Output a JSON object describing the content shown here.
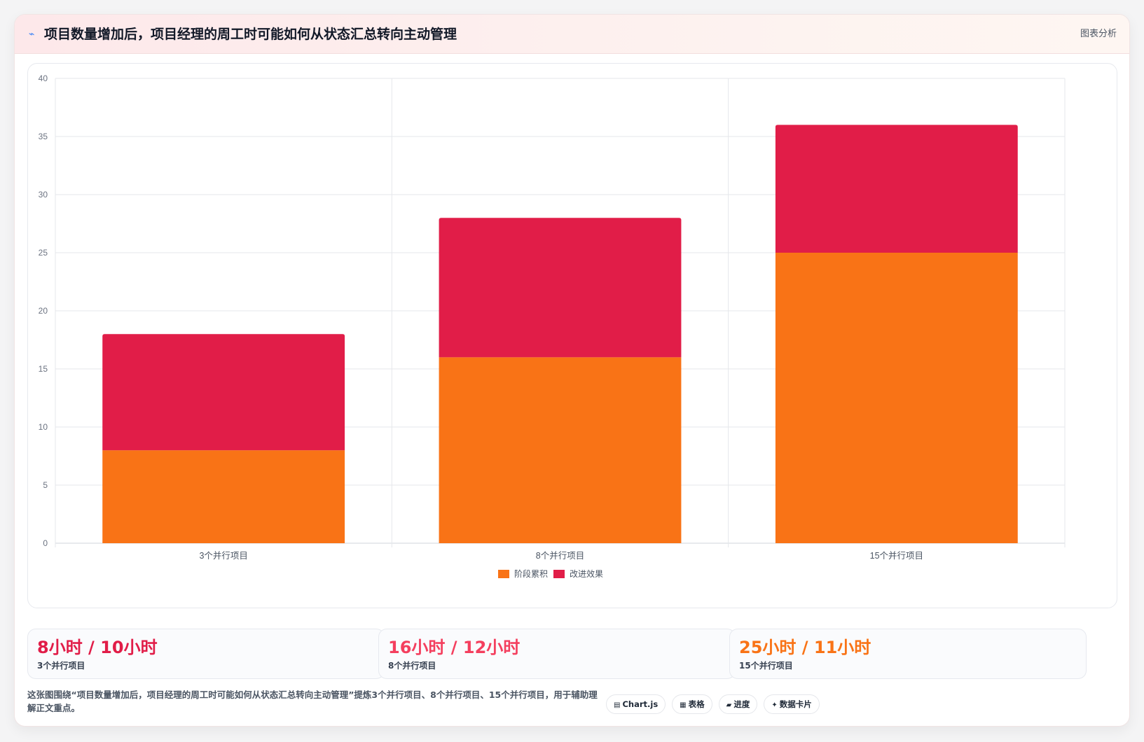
{
  "header": {
    "title": "项目数量增加后，项目经理的周工时可能如何从状态汇总转向主动管理",
    "tag": "图表分析"
  },
  "chart_data": {
    "type": "bar",
    "stacked": true,
    "categories": [
      "3个并行项目",
      "8个并行项目",
      "15个并行项目"
    ],
    "series": [
      {
        "name": "阶段累积",
        "values": [
          8,
          16,
          25
        ],
        "color": "#f97316"
      },
      {
        "name": "改进效果",
        "values": [
          10,
          12,
          11
        ],
        "color": "#e11d48"
      }
    ],
    "ylim": [
      0,
      40
    ],
    "yticks": [
      0,
      5,
      10,
      15,
      20,
      25,
      30,
      35,
      40
    ],
    "grid": true,
    "legend": "bottom"
  },
  "stats": [
    {
      "value": "8小时 / 10小时",
      "label": "3个并行项目",
      "color": "#e11d48"
    },
    {
      "value": "16小时 / 12小时",
      "label": "8个并行项目",
      "color": "#f43f5e"
    },
    {
      "value": "25小时 / 11小时",
      "label": "15个并行项目",
      "color": "#f97316"
    }
  ],
  "footer": {
    "description": "这张图围绕“项目数量增加后，项目经理的周工时可能如何从状态汇总转向主动管理”提炼3个并行项目、8个并行项目、15个并行项目，用于辅助理解正文重点。",
    "chips": [
      {
        "icon": "chart-icon",
        "glyph": "▤",
        "label": "Chart.js"
      },
      {
        "icon": "table-icon",
        "glyph": "▦",
        "label": "表格"
      },
      {
        "icon": "progress-icon",
        "glyph": "▰",
        "label": "进度"
      },
      {
        "icon": "sparkle-icon",
        "glyph": "✦",
        "label": "数据卡片"
      }
    ]
  }
}
